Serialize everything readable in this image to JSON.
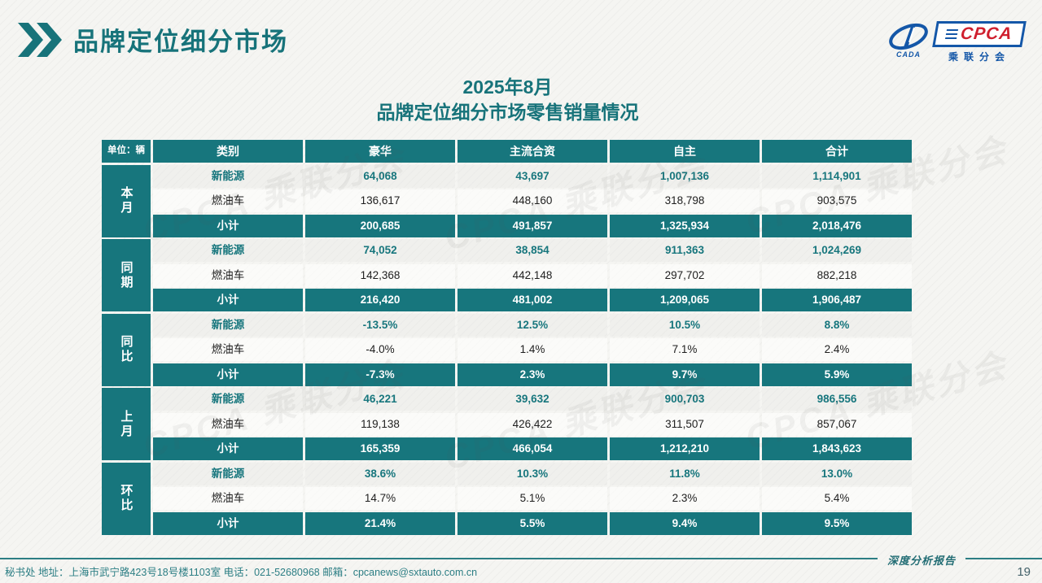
{
  "page": {
    "title": "品牌定位细分市场",
    "subtitle_line1": "2025年8月",
    "subtitle_line2": "品牌定位细分市场零售销量情况",
    "report_label": "深度分析报告",
    "footer_contact": "秘书处  地址：上海市武宁路423号18号楼1103室  电话：021-52680968   邮箱：cpcanews@sxtauto.com.cn",
    "page_number": "19",
    "watermark": "CPCA 乘联分会"
  },
  "logo": {
    "cpca": "CPCA",
    "cada": "CADA",
    "subtitle": "乘联分会"
  },
  "colors": {
    "teal": "#17767d",
    "title_teal": "#17737a",
    "logo_blue": "#1457a8",
    "logo_red": "#cf1f2e",
    "nev_row_bg": "#f0f0ed",
    "fuel_row_bg": "#fbfbf9"
  },
  "table": {
    "unit_label": "单位：辆",
    "columns": [
      "类别",
      "豪华",
      "主流合资",
      "自主",
      "合计"
    ],
    "groups": [
      {
        "label": "本月",
        "rows": [
          {
            "kind": "nev",
            "label": "新能源",
            "values": [
              "64,068",
              "43,697",
              "1,007,136",
              "1,114,901"
            ]
          },
          {
            "kind": "fuel",
            "label": "燃油车",
            "values": [
              "136,617",
              "448,160",
              "318,798",
              "903,575"
            ]
          },
          {
            "kind": "subtotal",
            "label": "小计",
            "values": [
              "200,685",
              "491,857",
              "1,325,934",
              "2,018,476"
            ]
          }
        ]
      },
      {
        "label": "同期",
        "rows": [
          {
            "kind": "nev",
            "label": "新能源",
            "values": [
              "74,052",
              "38,854",
              "911,363",
              "1,024,269"
            ]
          },
          {
            "kind": "fuel",
            "label": "燃油车",
            "values": [
              "142,368",
              "442,148",
              "297,702",
              "882,218"
            ]
          },
          {
            "kind": "subtotal",
            "label": "小计",
            "values": [
              "216,420",
              "481,002",
              "1,209,065",
              "1,906,487"
            ]
          }
        ]
      },
      {
        "label": "同比",
        "rows": [
          {
            "kind": "nev",
            "label": "新能源",
            "values": [
              "-13.5%",
              "12.5%",
              "10.5%",
              "8.8%"
            ]
          },
          {
            "kind": "fuel",
            "label": "燃油车",
            "values": [
              "-4.0%",
              "1.4%",
              "7.1%",
              "2.4%"
            ]
          },
          {
            "kind": "subtotal",
            "label": "小计",
            "values": [
              "-7.3%",
              "2.3%",
              "9.7%",
              "5.9%"
            ]
          }
        ]
      },
      {
        "label": "上月",
        "rows": [
          {
            "kind": "nev",
            "label": "新能源",
            "values": [
              "46,221",
              "39,632",
              "900,703",
              "986,556"
            ]
          },
          {
            "kind": "fuel",
            "label": "燃油车",
            "values": [
              "119,138",
              "426,422",
              "311,507",
              "857,067"
            ]
          },
          {
            "kind": "subtotal",
            "label": "小计",
            "values": [
              "165,359",
              "466,054",
              "1,212,210",
              "1,843,623"
            ]
          }
        ]
      },
      {
        "label": "环比",
        "rows": [
          {
            "kind": "nev",
            "label": "新能源",
            "values": [
              "38.6%",
              "10.3%",
              "11.8%",
              "13.0%"
            ]
          },
          {
            "kind": "fuel",
            "label": "燃油车",
            "values": [
              "14.7%",
              "5.1%",
              "2.3%",
              "5.4%"
            ]
          },
          {
            "kind": "subtotal",
            "label": "小计",
            "values": [
              "21.4%",
              "5.5%",
              "9.4%",
              "9.5%"
            ]
          }
        ]
      }
    ]
  }
}
